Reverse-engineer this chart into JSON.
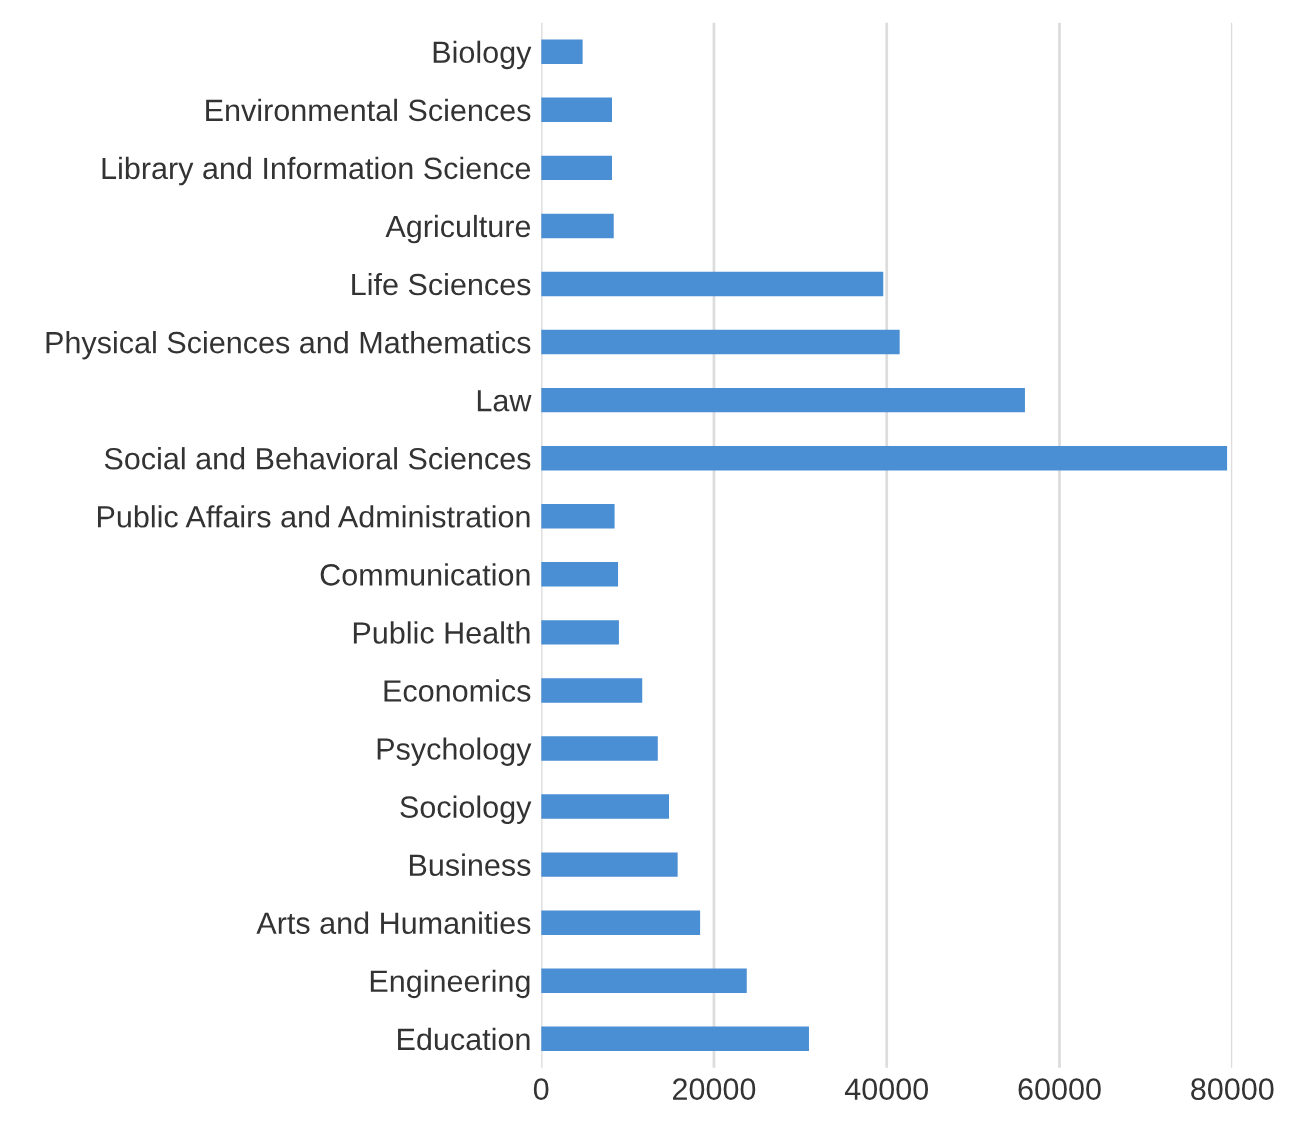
{
  "chart_data": {
    "type": "bar",
    "orientation": "horizontal",
    "categories": [
      "Biology",
      "Environmental Sciences",
      "Library and Information Science",
      "Agriculture",
      "Life Sciences",
      "Physical Sciences and Mathematics",
      "Law",
      "Social and Behavioral Sciences",
      "Public Affairs and Administration",
      "Communication",
      "Public Health",
      "Economics",
      "Psychology",
      "Sociology",
      "Business",
      "Arts and Humanities",
      "Engineering",
      "Education"
    ],
    "values": [
      4800,
      8200,
      8200,
      8400,
      39600,
      41500,
      56000,
      79400,
      8500,
      8900,
      9000,
      11700,
      13500,
      14800,
      15800,
      18400,
      23800,
      31000
    ],
    "color": "#4a8fd4",
    "xlim": [
      0,
      80000
    ],
    "xticks": [
      0,
      20000,
      40000,
      60000,
      80000
    ],
    "grid": "x",
    "legend": false
  }
}
